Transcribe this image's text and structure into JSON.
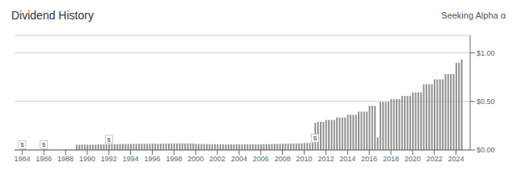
{
  "chart_data": {
    "type": "bar",
    "title": "Dividend History",
    "color": "#909090",
    "grid": true,
    "xlim": [
      1983.3,
      2025.3
    ],
    "xticks": [
      1984,
      1986,
      1988,
      1990,
      1992,
      1994,
      1996,
      1998,
      2000,
      2002,
      2004,
      2006,
      2008,
      2010,
      2012,
      2014,
      2016,
      2018,
      2020,
      2022,
      2024
    ],
    "ylim": [
      0,
      1.18
    ],
    "yticks": [
      {
        "value": 0,
        "label": "$0.00"
      },
      {
        "value": 0.5,
        "label": "$0.50"
      },
      {
        "value": 1,
        "label": "$1.00"
      }
    ],
    "x": [
      1984,
      1984.25,
      1986,
      1986.25,
      1988,
      1988.25,
      1989,
      1989.25,
      1989.5,
      1989.75,
      1990,
      1990.25,
      1990.5,
      1990.75,
      1991,
      1991.25,
      1991.5,
      1991.75,
      1992,
      1992.25,
      1992.5,
      1992.75,
      1993,
      1993.25,
      1993.5,
      1993.75,
      1994,
      1994.25,
      1994.5,
      1994.75,
      1995,
      1995.25,
      1995.5,
      1995.75,
      1996,
      1996.25,
      1996.5,
      1996.75,
      1997,
      1997.25,
      1997.5,
      1997.75,
      1998,
      1998.25,
      1998.5,
      1998.75,
      1999,
      1999.25,
      1999.5,
      1999.75,
      2000,
      2000.25,
      2000.5,
      2000.75,
      2001,
      2001.25,
      2001.5,
      2001.75,
      2002,
      2002.25,
      2002.5,
      2002.75,
      2003,
      2003.25,
      2003.5,
      2003.75,
      2004,
      2004.25,
      2004.5,
      2004.75,
      2005,
      2005.25,
      2005.5,
      2005.75,
      2006,
      2006.25,
      2006.5,
      2006.75,
      2007,
      2007.25,
      2007.5,
      2007.75,
      2008,
      2008.25,
      2008.5,
      2008.75,
      2009,
      2009.25,
      2009.5,
      2009.75,
      2010,
      2010.25,
      2010.5,
      2010.75,
      2011,
      2011.25,
      2011.5,
      2011.75,
      2012,
      2012.25,
      2012.5,
      2012.75,
      2013,
      2013.25,
      2013.5,
      2013.75,
      2014,
      2014.25,
      2014.5,
      2014.75,
      2015,
      2015.25,
      2015.5,
      2015.75,
      2016,
      2016.25,
      2016.5,
      2016.75,
      2017,
      2017.25,
      2017.5,
      2017.75,
      2018,
      2018.25,
      2018.5,
      2018.75,
      2019,
      2019.25,
      2019.5,
      2019.75,
      2020,
      2020.25,
      2020.5,
      2020.75,
      2021,
      2021.25,
      2021.5,
      2021.75,
      2022,
      2022.25,
      2022.5,
      2022.75,
      2023,
      2023.25,
      2023.5,
      2023.75,
      2024,
      2024.25,
      2024.5,
      2024.75
    ],
    "values": [
      0.005,
      0.005,
      0.005,
      0.005,
      0.005,
      0.005,
      0.055,
      0.055,
      0.055,
      0.055,
      0.055,
      0.055,
      0.055,
      0.055,
      0.058,
      0.058,
      0.058,
      0.058,
      0.06,
      0.06,
      0.06,
      0.06,
      0.062,
      0.062,
      0.062,
      0.062,
      0.063,
      0.063,
      0.063,
      0.063,
      0.064,
      0.064,
      0.064,
      0.064,
      0.065,
      0.065,
      0.065,
      0.065,
      0.066,
      0.066,
      0.066,
      0.066,
      0.067,
      0.067,
      0.067,
      0.067,
      0.067,
      0.067,
      0.067,
      0.067,
      0.062,
      0.062,
      0.062,
      0.062,
      0.06,
      0.06,
      0.06,
      0.06,
      0.058,
      0.058,
      0.058,
      0.058,
      0.058,
      0.058,
      0.058,
      0.058,
      0.058,
      0.058,
      0.058,
      0.058,
      0.058,
      0.058,
      0.058,
      0.058,
      0.06,
      0.06,
      0.06,
      0.06,
      0.062,
      0.062,
      0.062,
      0.062,
      0.065,
      0.065,
      0.065,
      0.065,
      0.068,
      0.068,
      0.068,
      0.068,
      0.072,
      0.072,
      0.072,
      0.072,
      0.28,
      0.29,
      0.29,
      0.29,
      0.31,
      0.31,
      0.31,
      0.31,
      0.335,
      0.335,
      0.335,
      0.335,
      0.3625,
      0.3625,
      0.3625,
      0.3625,
      0.395,
      0.395,
      0.395,
      0.395,
      0.455,
      0.455,
      0.455,
      0.13,
      0.495,
      0.495,
      0.495,
      0.495,
      0.5225,
      0.5225,
      0.5225,
      0.5225,
      0.5575,
      0.5575,
      0.5575,
      0.5575,
      0.5925,
      0.5925,
      0.5925,
      0.5925,
      0.6775,
      0.6775,
      0.6775,
      0.6775,
      0.7275,
      0.7275,
      0.7275,
      0.7275,
      0.7825,
      0.7825,
      0.7825,
      0.7825,
      0.8975,
      0.8975,
      0.9325,
      0.002
    ],
    "annotations": [
      {
        "text": "Seeking Alpha"
      },
      {
        "text": "α"
      },
      {
        "x": 1984,
        "y": 0.005,
        "text": "$"
      },
      {
        "x": 1986,
        "y": 0.005,
        "text": "$"
      },
      {
        "x": 1992,
        "y": 0.06,
        "text": "$"
      },
      {
        "x": 2011,
        "y": 0.072,
        "text": "$"
      }
    ]
  }
}
